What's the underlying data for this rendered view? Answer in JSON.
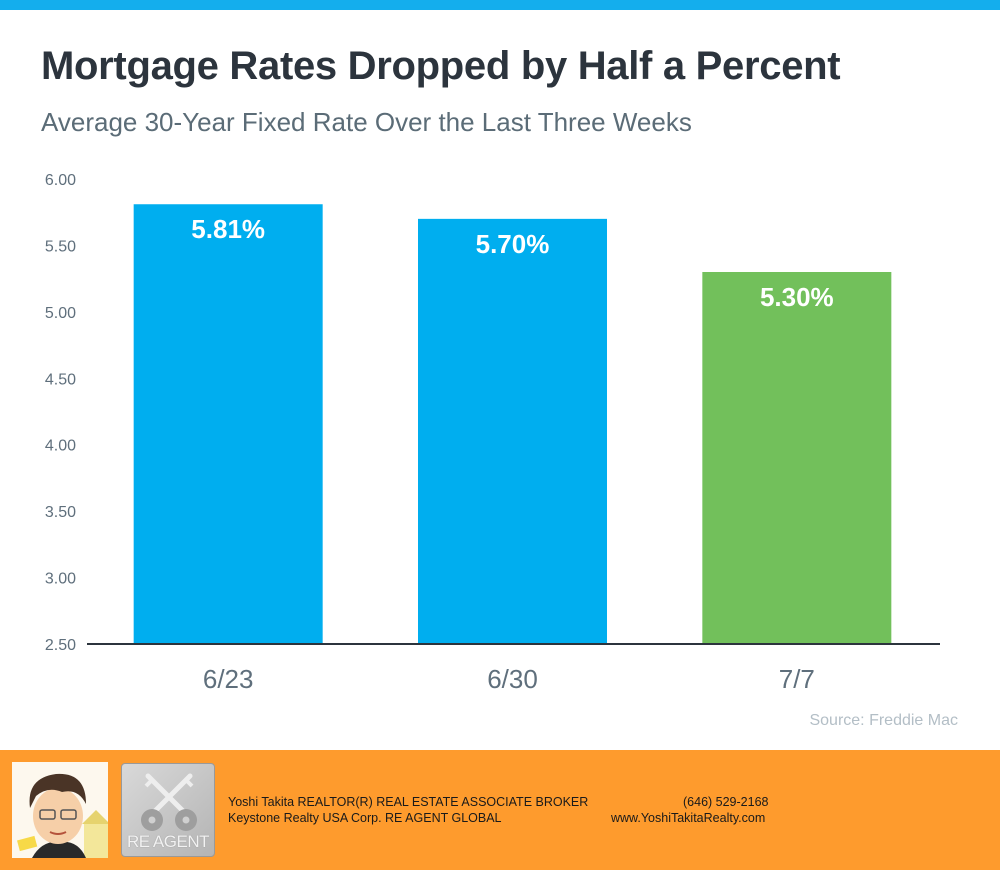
{
  "header": {
    "title": "Mortgage Rates Dropped by Half a Percent",
    "subtitle": "Average 30-Year Fixed Rate Over the Last Three Weeks"
  },
  "chart_data": {
    "type": "bar",
    "title": "Mortgage Rates Dropped by Half a Percent",
    "subtitle": "Average 30-Year Fixed Rate Over the Last Three Weeks",
    "xlabel": "",
    "ylabel": "",
    "categories": [
      "6/23",
      "6/30",
      "7/7"
    ],
    "values": [
      5.81,
      5.7,
      5.3
    ],
    "data_labels": [
      "5.81%",
      "5.70%",
      "5.30%"
    ],
    "bar_colors": [
      "#00aeef",
      "#00aeef",
      "#72c05b"
    ],
    "ylim": [
      2.5,
      6.0
    ],
    "yticks": [
      "6.00",
      "5.50",
      "5.00",
      "4.50",
      "4.00",
      "3.50",
      "3.00",
      "2.50"
    ],
    "grid": false,
    "legend": "none",
    "source": "Source: Freddie Mac"
  },
  "footer": {
    "line1_left": "Yoshi Takita REALTOR(R) REAL ESTATE ASSOCIATE BROKER",
    "line1_right": "(646) 529-2168",
    "line2_left": "Keystone Realty USA Corp.  RE AGENT GLOBAL",
    "line2_right": "www.YoshiTakitaRealty.com",
    "logo_text": "RE AGENT",
    "avatar_icon": "caricature-avatar",
    "logo_icon": "crossed-keys-logo"
  },
  "colors": {
    "top_bar": "#14aeed",
    "footer_bg": "#fe9b2d",
    "title": "#2c343d",
    "subtitle": "#5b6c77"
  }
}
